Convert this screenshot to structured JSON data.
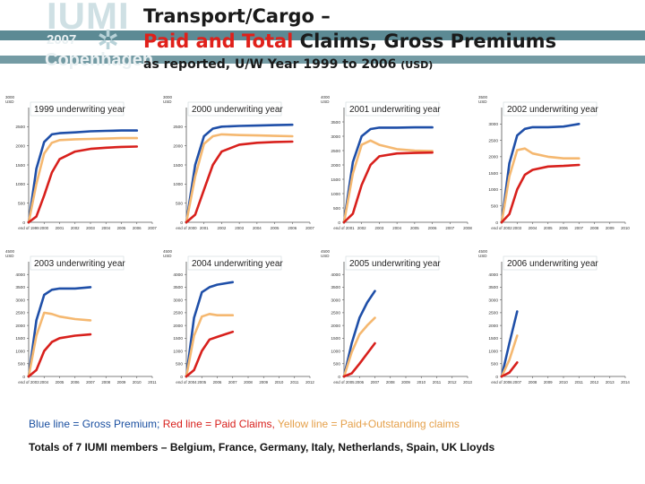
{
  "header": {
    "logo": {
      "line1": "IUMI",
      "line2": "2007",
      "line3": "Copenhagen"
    },
    "title_line1": "Transport/Cargo –",
    "title_line2_red": "Paid and Total",
    "title_line2_rest": " Claims, Gross Premiums",
    "subtitle": "as reported, U/W Year 1999 to 2006",
    "subtitle_unit": "(USD)"
  },
  "legend": {
    "blue": "Blue line = Gross Premium;",
    "red": "Red line = Paid Claims,",
    "yellow": "Yellow line = Paid+Outstanding claims"
  },
  "footer": "Totals of 7 IUMI members – Belgium, France, Germany, Italy, Netherlands, Spain, UK Lloyds",
  "colors": {
    "premium": "#1f4fa8",
    "paid": "#d8201c",
    "outstanding": "#f5b870",
    "stripe": "#5c8a94"
  },
  "chart_data": [
    {
      "type": "line",
      "title": "1999 underwriting year",
      "unit": "USD",
      "ylim": [
        0,
        3000
      ],
      "yticks": [
        0,
        500,
        1000,
        1500,
        2000,
        2500,
        3000
      ],
      "ytick_labels": [
        "0",
        "500",
        "1000",
        "1500",
        "2000",
        "2500",
        "3000"
      ],
      "xticks": [
        "end of 1999",
        "2000",
        "2001",
        "2002",
        "2003",
        "2004",
        "2005",
        "2006",
        "2007"
      ],
      "series": [
        {
          "name": "Gross Premium",
          "color": "blue",
          "x": [
            0,
            0.5,
            1,
            1.5,
            2,
            3,
            4,
            5,
            6,
            7
          ],
          "values": [
            0,
            1400,
            2100,
            2300,
            2330,
            2350,
            2380,
            2390,
            2400,
            2400
          ]
        },
        {
          "name": "Paid+Outstanding claims",
          "color": "yellow",
          "x": [
            0,
            0.5,
            1,
            1.5,
            2,
            3,
            4,
            5,
            6,
            7
          ],
          "values": [
            0,
            1000,
            1800,
            2080,
            2150,
            2170,
            2180,
            2190,
            2200,
            2200
          ]
        },
        {
          "name": "Paid Claims",
          "color": "red",
          "x": [
            0,
            0.5,
            1,
            1.5,
            2,
            3,
            4,
            5,
            6,
            7
          ],
          "values": [
            0,
            150,
            700,
            1300,
            1650,
            1850,
            1920,
            1950,
            1970,
            1980
          ]
        }
      ]
    },
    {
      "type": "line",
      "title": "2000 underwriting year",
      "unit": "USD",
      "ylim": [
        0,
        3000
      ],
      "yticks": [
        0,
        500,
        1000,
        1500,
        2000,
        2500,
        3000
      ],
      "ytick_labels": [
        "0",
        "500",
        "1000",
        "1500",
        "2000",
        "2500",
        "3000"
      ],
      "xticks": [
        "end of 2000",
        "2001",
        "2002",
        "2003",
        "2004",
        "2005",
        "2006",
        "2007"
      ],
      "series": [
        {
          "name": "Gross Premium",
          "color": "blue",
          "x": [
            0,
            0.5,
            1,
            1.5,
            2,
            3,
            4,
            5,
            6
          ],
          "values": [
            0,
            1500,
            2250,
            2450,
            2500,
            2520,
            2530,
            2540,
            2550
          ]
        },
        {
          "name": "Paid+Outstanding claims",
          "color": "yellow",
          "x": [
            0,
            0.5,
            1,
            1.5,
            2,
            3,
            4,
            5,
            6
          ],
          "values": [
            0,
            1200,
            2050,
            2250,
            2300,
            2280,
            2270,
            2260,
            2250
          ]
        },
        {
          "name": "Paid Claims",
          "color": "red",
          "x": [
            0,
            0.5,
            1,
            1.5,
            2,
            3,
            4,
            5,
            6
          ],
          "values": [
            0,
            200,
            850,
            1500,
            1850,
            2030,
            2080,
            2100,
            2110
          ]
        }
      ]
    },
    {
      "type": "line",
      "title": "2001 underwriting year",
      "unit": "USD",
      "ylim": [
        0,
        4000
      ],
      "yticks": [
        0,
        500,
        1000,
        1500,
        2000,
        2500,
        3000,
        3500,
        4000
      ],
      "ytick_labels": [
        "0",
        "500",
        "1000",
        "1500",
        "2000",
        "2500",
        "3000",
        "3500",
        "4000"
      ],
      "xticks": [
        "end of 2001",
        "2002",
        "2003",
        "2004",
        "2005",
        "2006",
        "2007",
        "2008"
      ],
      "series": [
        {
          "name": "Gross Premium",
          "color": "blue",
          "x": [
            0,
            0.5,
            1,
            1.5,
            2,
            3,
            4,
            5
          ],
          "values": [
            0,
            2100,
            3000,
            3250,
            3300,
            3300,
            3310,
            3310
          ]
        },
        {
          "name": "Paid+Outstanding claims",
          "color": "yellow",
          "x": [
            0,
            0.5,
            1,
            1.5,
            2,
            3,
            4,
            5
          ],
          "values": [
            0,
            1700,
            2700,
            2850,
            2700,
            2550,
            2500,
            2480
          ]
        },
        {
          "name": "Paid Claims",
          "color": "red",
          "x": [
            0,
            0.5,
            1,
            1.5,
            2,
            3,
            4,
            5
          ],
          "values": [
            0,
            300,
            1300,
            2000,
            2300,
            2400,
            2420,
            2430
          ]
        }
      ]
    },
    {
      "type": "line",
      "title": "2002 underwriting year",
      "unit": "USD",
      "ylim": [
        0,
        3500
      ],
      "yticks": [
        0,
        500,
        1000,
        1500,
        2000,
        2500,
        3000,
        3500
      ],
      "ytick_labels": [
        "0",
        "500",
        "1000",
        "1500",
        "2000",
        "2500",
        "3000",
        "3500"
      ],
      "xticks": [
        "end of 2002",
        "2003",
        "2004",
        "2005",
        "2006",
        "2007",
        "2008",
        "2009",
        "2010"
      ],
      "series": [
        {
          "name": "Gross Premium",
          "color": "blue",
          "x": [
            0,
            0.5,
            1,
            1.5,
            2,
            3,
            4,
            5
          ],
          "values": [
            0,
            1800,
            2650,
            2850,
            2900,
            2900,
            2920,
            3000
          ]
        },
        {
          "name": "Paid+Outstanding claims",
          "color": "yellow",
          "x": [
            0,
            0.5,
            1,
            1.5,
            2,
            3,
            4,
            5
          ],
          "values": [
            0,
            1400,
            2200,
            2250,
            2100,
            2000,
            1950,
            1950
          ]
        },
        {
          "name": "Paid Claims",
          "color": "red",
          "x": [
            0,
            0.5,
            1,
            1.5,
            2,
            3,
            4,
            5
          ],
          "values": [
            0,
            250,
            1000,
            1450,
            1600,
            1700,
            1720,
            1750
          ]
        }
      ]
    },
    {
      "type": "line",
      "title": "2003 underwriting year",
      "unit": "USD",
      "ylim": [
        0,
        4500
      ],
      "yticks": [
        0,
        500,
        1000,
        1500,
        2000,
        2500,
        3000,
        3500,
        4000,
        4500
      ],
      "ytick_labels": [
        "0",
        "500",
        "1000",
        "1500",
        "2000",
        "2500",
        "3000",
        "3500",
        "4000",
        "4500"
      ],
      "xticks": [
        "end of 2003",
        "2004",
        "2005",
        "2006",
        "2007",
        "2008",
        "2009",
        "2010",
        "2011"
      ],
      "series": [
        {
          "name": "Gross Premium",
          "color": "blue",
          "x": [
            0,
            0.5,
            1,
            1.5,
            2,
            3,
            4
          ],
          "values": [
            0,
            2200,
            3200,
            3400,
            3450,
            3450,
            3500
          ]
        },
        {
          "name": "Paid+Outstanding claims",
          "color": "yellow",
          "x": [
            0,
            0.5,
            1,
            1.5,
            2,
            3,
            4
          ],
          "values": [
            0,
            1600,
            2500,
            2450,
            2350,
            2250,
            2200
          ]
        },
        {
          "name": "Paid Claims",
          "color": "red",
          "x": [
            0,
            0.5,
            1,
            1.5,
            2,
            3,
            4
          ],
          "values": [
            0,
            250,
            1000,
            1350,
            1500,
            1600,
            1650
          ]
        }
      ]
    },
    {
      "type": "line",
      "title": "2004 underwriting year",
      "unit": "USD",
      "ylim": [
        0,
        4500
      ],
      "yticks": [
        0,
        500,
        1000,
        1500,
        2000,
        2500,
        3000,
        3500,
        4000,
        4500
      ],
      "ytick_labels": [
        "0",
        "500",
        "1000",
        "1500",
        "2000",
        "2500",
        "3000",
        "3500",
        "4000",
        "4500"
      ],
      "xticks": [
        "end of 2004",
        "2005",
        "2006",
        "2007",
        "2008",
        "2009",
        "2010",
        "2011",
        "2012"
      ],
      "series": [
        {
          "name": "Gross Premium",
          "color": "blue",
          "x": [
            0,
            0.5,
            1,
            1.5,
            2,
            3
          ],
          "values": [
            0,
            2300,
            3300,
            3500,
            3600,
            3700
          ]
        },
        {
          "name": "Paid+Outstanding claims",
          "color": "yellow",
          "x": [
            0,
            0.5,
            1,
            1.5,
            2,
            3
          ],
          "values": [
            0,
            1600,
            2350,
            2450,
            2400,
            2400
          ]
        },
        {
          "name": "Paid Claims",
          "color": "red",
          "x": [
            0,
            0.5,
            1,
            1.5,
            2,
            3
          ],
          "values": [
            0,
            250,
            1000,
            1450,
            1550,
            1750
          ]
        }
      ]
    },
    {
      "type": "line",
      "title": "2005 underwriting year",
      "unit": "USD",
      "ylim": [
        0,
        4500
      ],
      "yticks": [
        0,
        500,
        1000,
        1500,
        2000,
        2500,
        3000,
        3500,
        4000,
        4500
      ],
      "ytick_labels": [
        "0",
        "500",
        "1000",
        "1500",
        "2000",
        "2500",
        "3000",
        "3500",
        "4000",
        "4500"
      ],
      "xticks": [
        "end of 2005",
        "2006",
        "2007",
        "2008",
        "2009",
        "2010",
        "2011",
        "2012",
        "2013"
      ],
      "series": [
        {
          "name": "Gross Premium",
          "color": "blue",
          "x": [
            0,
            0.5,
            1,
            1.5,
            2
          ],
          "values": [
            0,
            1300,
            2300,
            2900,
            3350
          ]
        },
        {
          "name": "Paid+Outstanding claims",
          "color": "yellow",
          "x": [
            0,
            0.5,
            1,
            1.5,
            2
          ],
          "values": [
            0,
            950,
            1650,
            2000,
            2300
          ]
        },
        {
          "name": "Paid Claims",
          "color": "red",
          "x": [
            0,
            0.5,
            1,
            1.5,
            2
          ],
          "values": [
            0,
            120,
            500,
            900,
            1300
          ]
        }
      ]
    },
    {
      "type": "line",
      "title": "2006 underwriting year",
      "unit": "USD",
      "ylim": [
        0,
        4500
      ],
      "yticks": [
        0,
        500,
        1000,
        1500,
        2000,
        2500,
        3000,
        3500,
        4000,
        4500
      ],
      "ytick_labels": [
        "0",
        "500",
        "1000",
        "1500",
        "2000",
        "2500",
        "3000",
        "3500",
        "4000",
        "4500"
      ],
      "xticks": [
        "end of 2006",
        "2007",
        "2008",
        "2009",
        "2010",
        "2011",
        "2012",
        "2013",
        "2014"
      ],
      "series": [
        {
          "name": "Gross Premium",
          "color": "blue",
          "x": [
            0,
            0.5,
            1
          ],
          "values": [
            0,
            1300,
            2550
          ]
        },
        {
          "name": "Paid+Outstanding claims",
          "color": "yellow",
          "x": [
            0,
            0.5,
            1
          ],
          "values": [
            0,
            650,
            1600
          ]
        },
        {
          "name": "Paid Claims",
          "color": "red",
          "x": [
            0,
            0.5,
            1
          ],
          "values": [
            0,
            150,
            550
          ]
        }
      ]
    }
  ]
}
